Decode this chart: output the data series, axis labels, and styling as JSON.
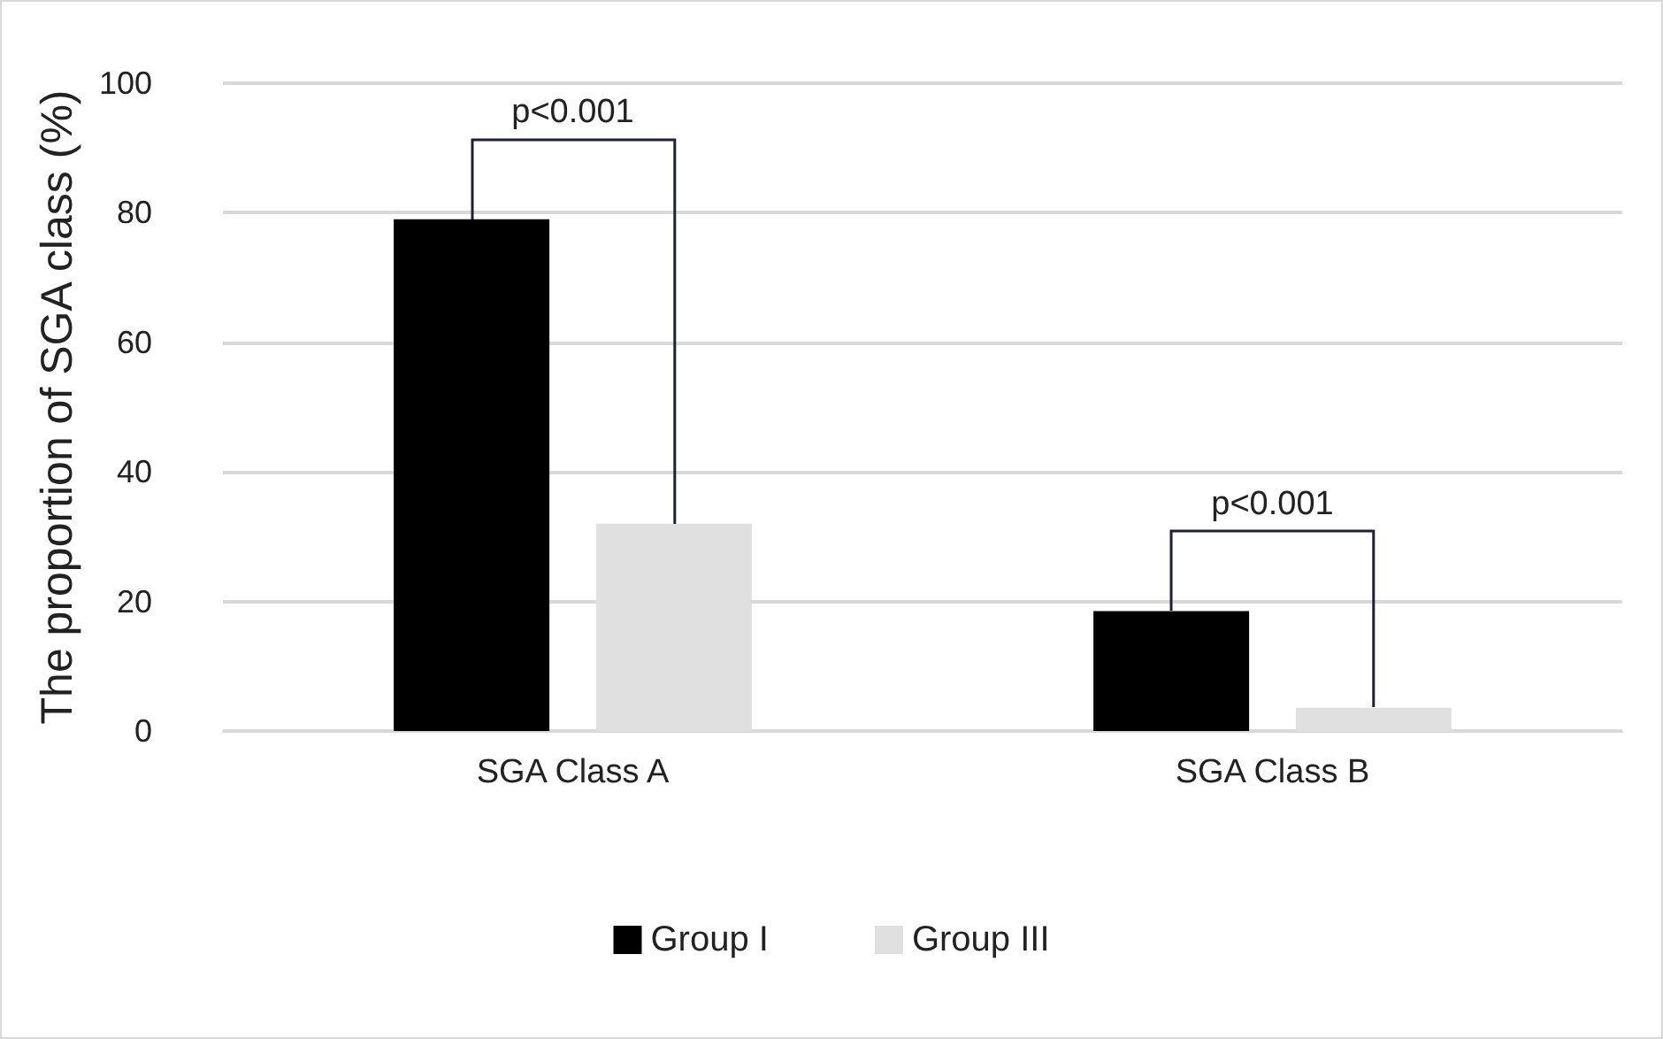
{
  "chart_data": {
    "type": "bar",
    "ylabel": "The proportion of SGA class (%)",
    "categories": [
      "SGA Class A",
      "SGA Class B"
    ],
    "series": [
      {
        "name": "Group I",
        "color": "#000000",
        "values": [
          79,
          18.5
        ]
      },
      {
        "name": "Group III",
        "color": "#e0e0e0",
        "values": [
          32,
          3.6
        ]
      }
    ],
    "ylim": [
      0,
      100
    ],
    "yticks": [
      0,
      20,
      40,
      60,
      80,
      100
    ],
    "grid": "y",
    "legend": "bottom",
    "annotations": [
      "p<0.001",
      "p<0.001"
    ]
  }
}
